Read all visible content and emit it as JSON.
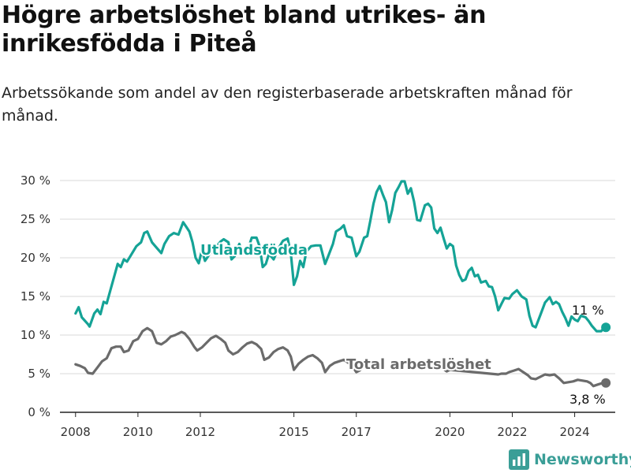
{
  "title": "Högre arbetslöshet bland utrikes- än inrikesfödda i Piteå",
  "subtitle": "Arbetssökande som andel av den registerbaserade arbetskraften månad för månad.",
  "brand": {
    "name": "Newsworthy",
    "color": "#3a9e97"
  },
  "chart_data": {
    "type": "line",
    "xlim": [
      2007.5,
      2025.3
    ],
    "ylim": [
      0,
      30
    ],
    "y_ticks": [
      0,
      5,
      10,
      15,
      20,
      25,
      30
    ],
    "y_tick_labels": [
      "0 %",
      "5 %",
      "10 %",
      "15 %",
      "20 %",
      "25 %",
      "30 %"
    ],
    "x_ticks": [
      2008,
      2010,
      2012,
      2015,
      2017,
      2020,
      2022,
      2024
    ],
    "x_tick_labels": [
      "2008",
      "2010",
      "2012",
      "2015",
      "2017",
      "2020",
      "2022",
      "2024"
    ],
    "grid": "horizontal",
    "series": [
      {
        "name": "Utlandsfödda",
        "color": "#15a396",
        "end_label": "11 %",
        "points": [
          [
            2008.0,
            12.8
          ],
          [
            2008.1,
            13.6
          ],
          [
            2008.2,
            12.3
          ],
          [
            2008.4,
            11.4
          ],
          [
            2008.45,
            11.1
          ],
          [
            2008.6,
            12.8
          ],
          [
            2008.7,
            13.3
          ],
          [
            2008.8,
            12.7
          ],
          [
            2008.9,
            14.3
          ],
          [
            2009.0,
            14.1
          ],
          [
            2009.2,
            17.0
          ],
          [
            2009.35,
            19.2
          ],
          [
            2009.45,
            18.8
          ],
          [
            2009.55,
            19.8
          ],
          [
            2009.65,
            19.5
          ],
          [
            2009.8,
            20.5
          ],
          [
            2009.95,
            21.5
          ],
          [
            2010.1,
            22.0
          ],
          [
            2010.2,
            23.2
          ],
          [
            2010.3,
            23.4
          ],
          [
            2010.45,
            22.0
          ],
          [
            2010.6,
            21.3
          ],
          [
            2010.75,
            20.6
          ],
          [
            2010.85,
            21.8
          ],
          [
            2011.0,
            22.8
          ],
          [
            2011.15,
            23.2
          ],
          [
            2011.3,
            23.0
          ],
          [
            2011.45,
            24.6
          ],
          [
            2011.55,
            24.0
          ],
          [
            2011.65,
            23.4
          ],
          [
            2011.75,
            22.0
          ],
          [
            2011.85,
            20.0
          ],
          [
            2011.95,
            19.3
          ],
          [
            2012.05,
            21.0
          ],
          [
            2012.15,
            19.6
          ],
          [
            2012.3,
            20.5
          ],
          [
            2012.5,
            21.4
          ],
          [
            2012.65,
            22.1
          ],
          [
            2012.75,
            22.4
          ],
          [
            2012.9,
            22.0
          ],
          [
            2013.0,
            19.8
          ],
          [
            2013.1,
            20.2
          ],
          [
            2013.25,
            21.8
          ],
          [
            2013.35,
            20.5
          ],
          [
            2013.5,
            20.8
          ],
          [
            2013.65,
            22.6
          ],
          [
            2013.8,
            22.6
          ],
          [
            2013.9,
            21.5
          ],
          [
            2014.0,
            18.8
          ],
          [
            2014.1,
            19.2
          ],
          [
            2014.2,
            20.5
          ],
          [
            2014.35,
            19.8
          ],
          [
            2014.5,
            21.2
          ],
          [
            2014.65,
            22.2
          ],
          [
            2014.8,
            22.5
          ],
          [
            2014.9,
            20.6
          ],
          [
            2015.0,
            16.5
          ],
          [
            2015.1,
            17.6
          ],
          [
            2015.2,
            19.6
          ],
          [
            2015.3,
            18.8
          ],
          [
            2015.4,
            20.8
          ],
          [
            2015.55,
            21.5
          ],
          [
            2015.7,
            21.6
          ],
          [
            2015.85,
            21.6
          ],
          [
            2016.0,
            19.2
          ],
          [
            2016.1,
            20.2
          ],
          [
            2016.25,
            21.8
          ],
          [
            2016.35,
            23.4
          ],
          [
            2016.5,
            23.8
          ],
          [
            2016.6,
            24.2
          ],
          [
            2016.7,
            22.8
          ],
          [
            2016.85,
            22.6
          ],
          [
            2017.0,
            20.2
          ],
          [
            2017.1,
            20.8
          ],
          [
            2017.25,
            22.6
          ],
          [
            2017.35,
            22.8
          ],
          [
            2017.45,
            24.8
          ],
          [
            2017.55,
            27.0
          ],
          [
            2017.65,
            28.5
          ],
          [
            2017.75,
            29.3
          ],
          [
            2017.85,
            28.2
          ],
          [
            2017.95,
            27.2
          ],
          [
            2018.05,
            24.6
          ],
          [
            2018.15,
            26.2
          ],
          [
            2018.25,
            28.4
          ],
          [
            2018.35,
            29.1
          ],
          [
            2018.45,
            29.9
          ],
          [
            2018.55,
            29.9
          ],
          [
            2018.65,
            28.3
          ],
          [
            2018.75,
            29.0
          ],
          [
            2018.85,
            27.3
          ],
          [
            2018.95,
            24.9
          ],
          [
            2019.05,
            24.8
          ],
          [
            2019.2,
            26.8
          ],
          [
            2019.3,
            27.0
          ],
          [
            2019.4,
            26.5
          ],
          [
            2019.5,
            23.8
          ],
          [
            2019.6,
            23.2
          ],
          [
            2019.7,
            23.9
          ],
          [
            2019.8,
            22.5
          ],
          [
            2019.9,
            21.2
          ],
          [
            2020.0,
            21.8
          ],
          [
            2020.1,
            21.5
          ],
          [
            2020.2,
            19.0
          ],
          [
            2020.3,
            17.8
          ],
          [
            2020.4,
            17.0
          ],
          [
            2020.5,
            17.2
          ],
          [
            2020.6,
            18.3
          ],
          [
            2020.7,
            18.7
          ],
          [
            2020.8,
            17.6
          ],
          [
            2020.9,
            17.8
          ],
          [
            2021.0,
            16.8
          ],
          [
            2021.15,
            17.0
          ],
          [
            2021.25,
            16.3
          ],
          [
            2021.35,
            16.2
          ],
          [
            2021.45,
            15.0
          ],
          [
            2021.55,
            13.2
          ],
          [
            2021.65,
            14.0
          ],
          [
            2021.75,
            14.8
          ],
          [
            2021.9,
            14.7
          ],
          [
            2022.0,
            15.3
          ],
          [
            2022.15,
            15.8
          ],
          [
            2022.3,
            15.0
          ],
          [
            2022.45,
            14.6
          ],
          [
            2022.55,
            12.5
          ],
          [
            2022.65,
            11.2
          ],
          [
            2022.75,
            11.0
          ],
          [
            2022.9,
            12.6
          ],
          [
            2023.05,
            14.2
          ],
          [
            2023.2,
            14.9
          ],
          [
            2023.3,
            14.0
          ],
          [
            2023.4,
            14.3
          ],
          [
            2023.5,
            14.0
          ],
          [
            2023.6,
            13.0
          ],
          [
            2023.7,
            12.2
          ],
          [
            2023.8,
            11.2
          ],
          [
            2023.9,
            12.4
          ],
          [
            2024.0,
            12.0
          ],
          [
            2024.1,
            11.8
          ],
          [
            2024.2,
            12.5
          ],
          [
            2024.35,
            12.3
          ],
          [
            2024.45,
            11.8
          ],
          [
            2024.55,
            11.2
          ],
          [
            2024.7,
            10.5
          ],
          [
            2024.85,
            10.5
          ],
          [
            2024.95,
            11.0
          ],
          [
            2025.0,
            11.0
          ]
        ]
      },
      {
        "name": "Total arbetslöshet",
        "color": "#6b6b6b",
        "end_label": "3,8 %",
        "points": [
          [
            2008.0,
            6.2
          ],
          [
            2008.15,
            6.0
          ],
          [
            2008.3,
            5.7
          ],
          [
            2008.4,
            5.1
          ],
          [
            2008.55,
            5.0
          ],
          [
            2008.7,
            5.8
          ],
          [
            2008.85,
            6.6
          ],
          [
            2009.0,
            7.0
          ],
          [
            2009.15,
            8.3
          ],
          [
            2009.3,
            8.5
          ],
          [
            2009.45,
            8.5
          ],
          [
            2009.55,
            7.8
          ],
          [
            2009.7,
            8.0
          ],
          [
            2009.85,
            9.2
          ],
          [
            2010.0,
            9.5
          ],
          [
            2010.15,
            10.5
          ],
          [
            2010.3,
            10.9
          ],
          [
            2010.45,
            10.5
          ],
          [
            2010.6,
            9.0
          ],
          [
            2010.75,
            8.8
          ],
          [
            2010.9,
            9.2
          ],
          [
            2011.05,
            9.8
          ],
          [
            2011.2,
            10.0
          ],
          [
            2011.4,
            10.4
          ],
          [
            2011.5,
            10.2
          ],
          [
            2011.65,
            9.5
          ],
          [
            2011.8,
            8.5
          ],
          [
            2011.9,
            8.0
          ],
          [
            2012.05,
            8.4
          ],
          [
            2012.2,
            9.0
          ],
          [
            2012.35,
            9.6
          ],
          [
            2012.5,
            9.9
          ],
          [
            2012.65,
            9.5
          ],
          [
            2012.8,
            9.0
          ],
          [
            2012.9,
            8.0
          ],
          [
            2013.05,
            7.5
          ],
          [
            2013.2,
            7.8
          ],
          [
            2013.35,
            8.4
          ],
          [
            2013.5,
            8.9
          ],
          [
            2013.65,
            9.1
          ],
          [
            2013.8,
            8.8
          ],
          [
            2013.95,
            8.2
          ],
          [
            2014.05,
            6.8
          ],
          [
            2014.2,
            7.1
          ],
          [
            2014.35,
            7.8
          ],
          [
            2014.5,
            8.2
          ],
          [
            2014.65,
            8.4
          ],
          [
            2014.8,
            8.0
          ],
          [
            2014.9,
            7.2
          ],
          [
            2015.0,
            5.5
          ],
          [
            2015.15,
            6.3
          ],
          [
            2015.3,
            6.8
          ],
          [
            2015.45,
            7.2
          ],
          [
            2015.6,
            7.4
          ],
          [
            2015.75,
            7.0
          ],
          [
            2015.9,
            6.4
          ],
          [
            2016.0,
            5.2
          ],
          [
            2016.15,
            6.0
          ],
          [
            2016.3,
            6.4
          ],
          [
            2016.45,
            6.6
          ],
          [
            2016.6,
            6.8
          ],
          [
            2016.75,
            6.4
          ],
          [
            2016.9,
            5.8
          ],
          [
            2017.0,
            5.2
          ],
          [
            2017.1,
            5.4
          ],
          [
            2017.25,
            6.0
          ],
          [
            2017.4,
            6.4
          ]
        ],
        "tail_points": [
          [
            2019.8,
            5.6
          ],
          [
            2019.9,
            5.3
          ],
          [
            2020.0,
            5.5
          ],
          [
            2021.55,
            4.9
          ],
          [
            2021.65,
            5.0
          ],
          [
            2021.8,
            5.0
          ],
          [
            2021.9,
            5.2
          ],
          [
            2022.05,
            5.4
          ],
          [
            2022.2,
            5.6
          ],
          [
            2022.35,
            5.2
          ],
          [
            2022.5,
            4.8
          ],
          [
            2022.6,
            4.4
          ],
          [
            2022.75,
            4.3
          ],
          [
            2022.9,
            4.6
          ],
          [
            2023.05,
            4.9
          ],
          [
            2023.2,
            4.8
          ],
          [
            2023.35,
            4.9
          ],
          [
            2023.5,
            4.4
          ],
          [
            2023.65,
            3.8
          ],
          [
            2023.8,
            3.9
          ],
          [
            2023.95,
            4.0
          ],
          [
            2024.1,
            4.2
          ],
          [
            2024.25,
            4.1
          ],
          [
            2024.4,
            4.0
          ],
          [
            2024.5,
            3.8
          ],
          [
            2024.6,
            3.4
          ],
          [
            2024.75,
            3.6
          ],
          [
            2024.9,
            3.8
          ],
          [
            2025.0,
            3.8
          ]
        ]
      }
    ]
  }
}
